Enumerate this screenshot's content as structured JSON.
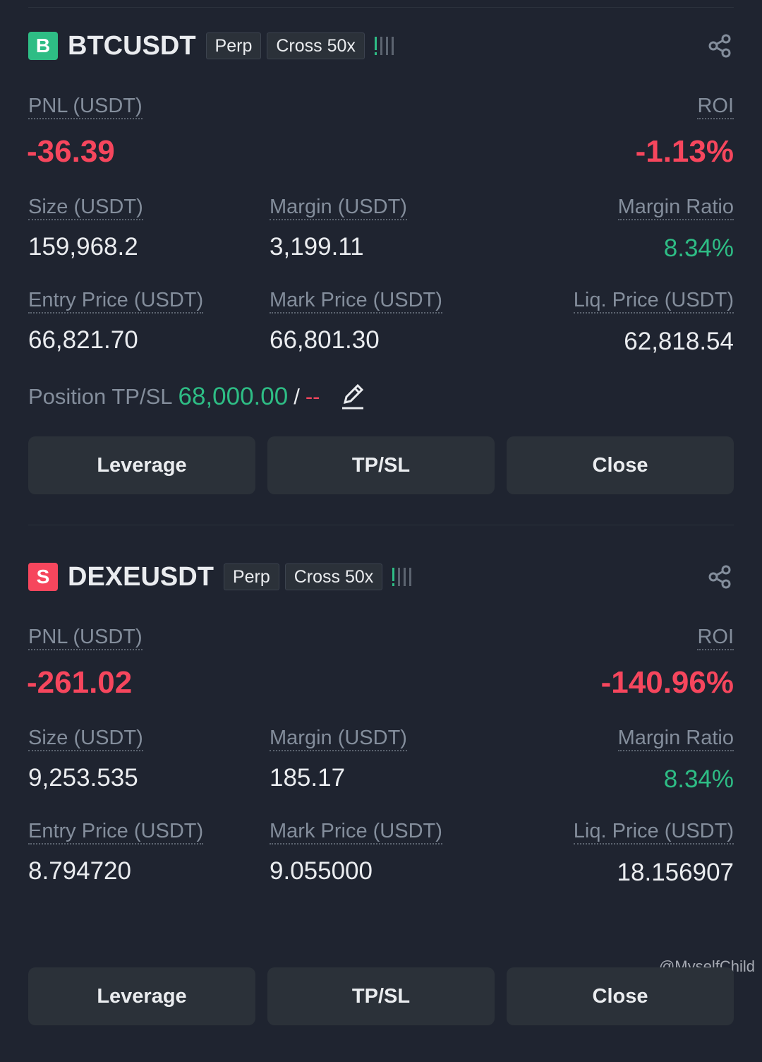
{
  "positions": [
    {
      "side": "B",
      "symbol": "BTCUSDT",
      "type": "Perp",
      "mode": "Cross 50x",
      "pnl_label": "PNL (USDT)",
      "pnl": "-36.39",
      "roi_label": "ROI",
      "roi": "-1.13%",
      "fields": [
        {
          "label": "Size (USDT)",
          "value": "159,968.2"
        },
        {
          "label": "Margin (USDT)",
          "value": "3,199.11"
        },
        {
          "label": "Margin Ratio",
          "value": "8.34%"
        },
        {
          "label": "Entry Price (USDT)",
          "value": "66,821.70"
        },
        {
          "label": "Mark Price (USDT)",
          "value": "66,801.30"
        },
        {
          "label": "Liq. Price (USDT)",
          "value": "62,818.54"
        }
      ],
      "tpsl": {
        "label": "Position TP/SL",
        "tp": "68,000.00",
        "separator": "/",
        "sl": "--"
      },
      "buttons": [
        "Leverage",
        "TP/SL",
        "Close"
      ]
    },
    {
      "side": "S",
      "symbol": "DEXEUSDT",
      "type": "Perp",
      "mode": "Cross 50x",
      "pnl_label": "PNL (USDT)",
      "pnl": "-261.02",
      "roi_label": "ROI",
      "roi": "-140.96%",
      "fields": [
        {
          "label": "Size (USDT)",
          "value": "9,253.535"
        },
        {
          "label": "Margin (USDT)",
          "value": "185.17"
        },
        {
          "label": "Margin Ratio",
          "value": "8.34%"
        },
        {
          "label": "Entry Price (USDT)",
          "value": "8.794720"
        },
        {
          "label": "Mark Price (USDT)",
          "value": "9.055000"
        },
        {
          "label": "Liq. Price (USDT)",
          "value": "18.156907"
        }
      ],
      "buttons": [
        "Leverage",
        "TP/SL",
        "Close"
      ]
    }
  ],
  "watermark": "@MyselfChild"
}
